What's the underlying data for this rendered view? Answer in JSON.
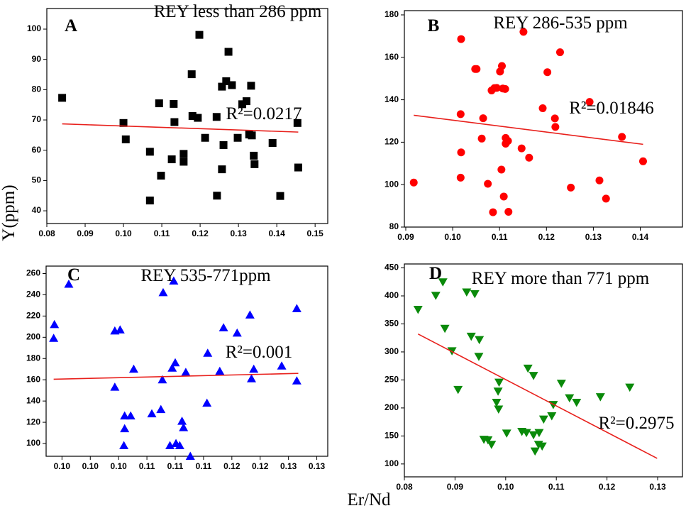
{
  "ylabel": "Y(ppm)",
  "xlabel": "Er/Nd",
  "chart_data": [
    {
      "type": "scatter",
      "letter": "A",
      "title": "REY less than 286 ppm",
      "annotation": "R²=0.0217",
      "marker": "square",
      "color": "#000000",
      "trend_color": "#e8201c",
      "xlim": [
        0.08,
        0.1533
      ],
      "ylim": [
        35.8,
        106.8
      ],
      "xticks": [
        0.08,
        0.09,
        {
          "value": 0.1,
          "label": "0.10"
        },
        0.11,
        0.12,
        0.13,
        0.14,
        0.15
      ],
      "yticks": [
        40,
        50,
        60,
        70,
        80,
        90,
        100
      ],
      "x": [
        0.084,
        0.1,
        0.1006,
        0.1069,
        0.1069,
        0.1093,
        0.1098,
        0.1126,
        0.1131,
        0.1133,
        0.1157,
        0.1157,
        0.1178,
        0.118,
        0.1194,
        0.1198,
        0.1213,
        0.1243,
        0.1244,
        0.1257,
        0.1261,
        0.1257,
        0.1268,
        0.1274,
        0.1283,
        0.1298,
        0.131,
        0.1321,
        0.1328,
        0.1333,
        0.1335,
        0.134,
        0.1342,
        0.1389,
        0.1409,
        0.1454,
        0.1456
      ],
      "values": [
        77.3,
        69,
        63.6,
        43.4,
        59.5,
        75.5,
        51.6,
        57,
        75.3,
        69.3,
        58.8,
        56.2,
        85.1,
        71.3,
        70.7,
        98.1,
        64.1,
        71,
        45,
        81,
        61.7,
        53.7,
        82.8,
        92.5,
        81.5,
        64.1,
        75.2,
        76.2,
        65.2,
        81.3,
        64.9,
        58.2,
        55.4,
        62.4,
        44.9,
        69,
        54.3
      ],
      "trend": {
        "x": [
          0.084,
          0.1456
        ],
        "values": [
          68.7,
          66
        ]
      }
    },
    {
      "type": "scatter",
      "letter": "B",
      "title": "REY 286-535 ppm",
      "annotation": "R²=0.01846",
      "marker": "circle",
      "color": "#ff0000",
      "trend_color": "#e8201c",
      "xlim": [
        0.0897,
        0.149
      ],
      "ylim": [
        80,
        182
      ],
      "xticks": [
        0.09,
        {
          "value": 0.1,
          "label": "0.10"
        },
        0.11,
        0.12,
        0.13,
        0.14
      ],
      "yticks": [
        80,
        100,
        120,
        140,
        160,
        180
      ],
      "x": [
        0.0917,
        0.1018,
        0.1017,
        0.1018,
        0.1017,
        0.1048,
        0.1051,
        0.1062,
        0.1065,
        0.1075,
        0.1083,
        0.1089,
        0.1086,
        0.1094,
        0.1101,
        0.1104,
        0.1105,
        0.1107,
        0.1109,
        0.1112,
        0.1113,
        0.1113,
        0.1118,
        0.1119,
        0.1147,
        0.1151,
        0.1163,
        0.1192,
        0.1202,
        0.1218,
        0.1219,
        0.1229,
        0.1252,
        0.1292,
        0.1313,
        0.1327,
        0.1361,
        0.1406
      ],
      "values": [
        101,
        168.6,
        133.2,
        115.2,
        103.3,
        154.5,
        154.5,
        121.7,
        131.3,
        100.4,
        144.4,
        145.5,
        87,
        145.6,
        153.3,
        107.1,
        155.9,
        145.3,
        94.4,
        145.1,
        122,
        119.3,
        120.6,
        87.2,
        117.1,
        172,
        112.7,
        136,
        153,
        131.2,
        127.2,
        162.4,
        98.6,
        139,
        102,
        93.4,
        122.5,
        111
      ],
      "trend": {
        "x": [
          0.0917,
          0.1406
        ],
        "values": [
          132.7,
          119
        ]
      }
    },
    {
      "type": "scatter",
      "letter": "C",
      "title": "REY 535-771ppm",
      "annotation": "R²=0.001",
      "marker": "triangle-up",
      "color": "#0000ff",
      "trend_color": "#e8201c",
      "xlim": [
        0.0934,
        0.1307
      ],
      "ylim": [
        88,
        267
      ],
      "xticks": [
        {
          "value": 0.0955,
          "label": "0.10"
        },
        {
          "value": 0.09925,
          "label": "0.10"
        },
        {
          "value": 0.103,
          "label": "0.10"
        },
        {
          "value": 0.10675,
          "label": "0.11"
        },
        {
          "value": 0.1105,
          "label": "0.11"
        },
        {
          "value": 0.11425,
          "label": "0.11"
        },
        {
          "value": 0.118,
          "label": "0.12"
        },
        {
          "value": 0.12175,
          "label": "0.12"
        },
        {
          "value": 0.1255,
          "label": "0.13"
        },
        {
          "value": 0.12925,
          "label": "0.13"
        }
      ],
      "yticks": [
        100,
        120,
        140,
        160,
        180,
        200,
        220,
        240,
        260
      ],
      "x": [
        0.0944,
        0.0945,
        0.0964,
        0.1025,
        0.1025,
        0.1032,
        0.1037,
        0.1038,
        0.1038,
        0.1046,
        0.105,
        0.1074,
        0.1086,
        0.1088,
        0.1089,
        0.1098,
        0.1101,
        0.1103,
        0.1105,
        0.1106,
        0.1111,
        0.1114,
        0.1116,
        0.1119,
        0.1125,
        0.1147,
        0.1148,
        0.1164,
        0.1169,
        0.1187,
        0.1204,
        0.1206,
        0.1209,
        0.1246,
        0.1266,
        0.1266
      ],
      "values": [
        199,
        212,
        250,
        153,
        206,
        207,
        98,
        126,
        114,
        126,
        170,
        128,
        132,
        160,
        242,
        98,
        171,
        253,
        176,
        100,
        98,
        121,
        115,
        167,
        88,
        138,
        185,
        168,
        209,
        204,
        221,
        161,
        170,
        173,
        227,
        159
      ],
      "trend": {
        "x": [
          0.0944,
          0.1268
        ],
        "values": [
          160.5,
          166
        ]
      }
    },
    {
      "type": "scatter",
      "letter": "D",
      "title": "REY more than 771 ppm",
      "annotation": "R²=0.2975",
      "marker": "triangle-down",
      "color": "#0a8a0a",
      "trend_color": "#e8201c",
      "xlim": [
        0.08,
        0.1349
      ],
      "ylim": [
        77,
        457
      ],
      "xticks": [
        0.08,
        0.09,
        {
          "value": 0.1,
          "label": "0.10"
        },
        0.11,
        0.12,
        0.13
      ],
      "yticks": [
        100,
        150,
        200,
        250,
        300,
        350,
        400,
        450
      ],
      "x": [
        0.0827,
        0.0862,
        0.0876,
        0.088,
        0.0894,
        0.0906,
        0.0923,
        0.0932,
        0.0939,
        0.0947,
        0.0948,
        0.0957,
        0.0965,
        0.0972,
        0.0982,
        0.0985,
        0.0986,
        0.0987,
        0.1002,
        0.1032,
        0.1041,
        0.1044,
        0.1055,
        0.1055,
        0.1058,
        0.1065,
        0.1066,
        0.1072,
        0.1075,
        0.1091,
        0.1094,
        0.111,
        0.1126,
        0.114,
        0.1187,
        0.1245
      ],
      "values": [
        376,
        401,
        425,
        342,
        302,
        233,
        407,
        328,
        404,
        292,
        322,
        144,
        143,
        135,
        210,
        230,
        198,
        246,
        155,
        158,
        156,
        271,
        152,
        258,
        123,
        135,
        156,
        132,
        180,
        186,
        206,
        244,
        218,
        210,
        220,
        237
      ],
      "trend": {
        "x": [
          0.0827,
          0.1299
        ],
        "values": [
          332,
          110
        ]
      }
    }
  ]
}
